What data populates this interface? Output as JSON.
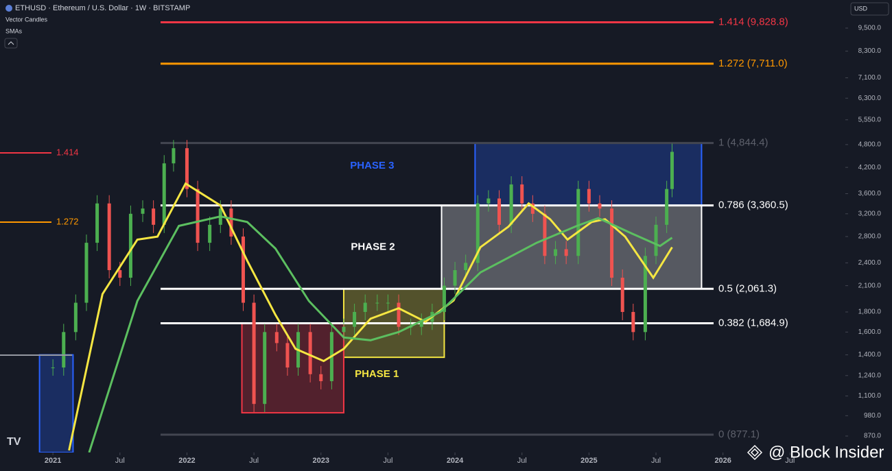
{
  "header": {
    "title": "ETHUSD · Ethereum / U.S. Dollar · 1W · BITSTAMP",
    "indicators": [
      "Vector Candles",
      "SMAs"
    ],
    "currency": "USD"
  },
  "watermark": "@ Block Insider",
  "left_markers": [
    {
      "label": "1.414",
      "color": "#f23645"
    },
    {
      "label": "1.272",
      "color": "#ff9800"
    }
  ],
  "chart_data": {
    "type": "candlestick",
    "ylog": true,
    "ylim": [
      790,
      11200
    ],
    "xlim": [
      2020.605,
      2026.913
    ],
    "yticks": [
      {
        "value": 9500,
        "label": "9,500.0"
      },
      {
        "value": 8300,
        "label": "8,300.0"
      },
      {
        "value": 7100,
        "label": "7,100.0"
      },
      {
        "value": 6300,
        "label": "6,300.0"
      },
      {
        "value": 5550,
        "label": "5,550.0"
      },
      {
        "value": 4800,
        "label": "4,800.0"
      },
      {
        "value": 4200,
        "label": "4,200.0"
      },
      {
        "value": 3600,
        "label": "3,600.0"
      },
      {
        "value": 3200,
        "label": "3,200.0"
      },
      {
        "value": 2800,
        "label": "2,800.0"
      },
      {
        "value": 2400,
        "label": "2,400.0"
      },
      {
        "value": 2100,
        "label": "2,100.0"
      },
      {
        "value": 1800,
        "label": "1,800.0"
      },
      {
        "value": 1600,
        "label": "1,600.0"
      },
      {
        "value": 1400,
        "label": "1,400.0"
      },
      {
        "value": 1240,
        "label": "1,240.0"
      },
      {
        "value": 1100,
        "label": "1,100.0"
      },
      {
        "value": 980,
        "label": "980.0"
      },
      {
        "value": 870,
        "label": "870.0"
      }
    ],
    "xticks": [
      2021,
      {
        "value": 2021.5,
        "label": "Jul"
      },
      2022,
      {
        "value": 2022.5,
        "label": "Jul"
      },
      2023,
      {
        "value": 2023.5,
        "label": "Jul"
      },
      2024,
      {
        "value": 2024.5,
        "label": "Jul"
      },
      2025,
      {
        "value": 2025.5,
        "label": "Jul"
      },
      2026,
      {
        "value": 2026.5,
        "label": "Jul"
      }
    ],
    "price": {
      "x": [
        2021.0,
        2021.08,
        2021.17,
        2021.25,
        2021.33,
        2021.42,
        2021.5,
        2021.58,
        2021.67,
        2021.75,
        2021.83,
        2021.9,
        2022.0,
        2022.08,
        2022.17,
        2022.25,
        2022.33,
        2022.42,
        2022.5,
        2022.58,
        2022.67,
        2022.75,
        2022.83,
        2022.92,
        2023.0,
        2023.08,
        2023.17,
        2023.25,
        2023.33,
        2023.42,
        2023.5,
        2023.58,
        2023.67,
        2023.75,
        2023.83,
        2023.92,
        2024.0,
        2024.08,
        2024.17,
        2024.25,
        2024.33,
        2024.42,
        2024.5,
        2024.58,
        2024.67,
        2024.75,
        2024.83,
        2024.92,
        2025.0,
        2025.08,
        2025.17,
        2025.25,
        2025.33,
        2025.42,
        2025.5,
        2025.58,
        2025.62
      ],
      "values": [
        1300,
        1600,
        1900,
        2700,
        3400,
        2300,
        2200,
        3200,
        3300,
        3000,
        4300,
        4700,
        3700,
        2700,
        3000,
        3300,
        2800,
        1900,
        1050,
        1600,
        1500,
        1300,
        1600,
        1250,
        1200,
        1600,
        1650,
        1800,
        1900,
        1900,
        1900,
        1650,
        1650,
        1700,
        1800,
        2100,
        2300,
        2400,
        3400,
        3500,
        3000,
        3800,
        3400,
        3200,
        2500,
        2600,
        2500,
        3700,
        3400,
        3300,
        2200,
        1800,
        1600,
        2500,
        3000,
        3700,
        4600
      ]
    },
    "series": [
      {
        "color": "#f5e642",
        "x": [
          2021.12,
          2021.37,
          2021.63,
          2021.78,
          2021.99,
          2022.25,
          2022.45,
          2022.66,
          2022.81,
          2023.02,
          2023.17,
          2023.37,
          2023.58,
          2023.78,
          2023.99,
          2024.19,
          2024.4,
          2024.55,
          2024.71,
          2024.84,
          2025.02,
          2025.12,
          2025.27,
          2025.48,
          2025.62
        ],
        "values": [
          800,
          2000,
          2750,
          2800,
          3820,
          3360,
          2430,
          1770,
          1450,
          1350,
          1450,
          1730,
          1840,
          1700,
          1925,
          2630,
          2970,
          3400,
          3100,
          2750,
          3050,
          3100,
          2800,
          2200,
          2630
        ]
      },
      {
        "color": "#5cbf60",
        "x": [
          2021.27,
          2021.63,
          2021.94,
          2022.25,
          2022.45,
          2022.66,
          2022.91,
          2023.17,
          2023.37,
          2023.58,
          2023.89,
          2024.19,
          2024.61,
          2024.91,
          2025.07,
          2025.32,
          2025.53,
          2025.62
        ],
        "values": [
          790,
          1920,
          2980,
          3150,
          3050,
          2610,
          1920,
          1550,
          1525,
          1600,
          1800,
          2270,
          2700,
          2980,
          3120,
          2850,
          2650,
          2780
        ]
      }
    ],
    "levels": [
      {
        "value": 9828.8,
        "label": "1.414 (9,828.8)",
        "color": "#f23645"
      },
      {
        "value": 7711.0,
        "label": "1.272 (7,711.0)",
        "color": "#ff9800"
      },
      {
        "value": 4844.4,
        "label": "1 (4,844.4)",
        "color": "#434651"
      },
      {
        "value": 3360.5,
        "label": "0.786 (3,360.5)",
        "color": "#ffffff"
      },
      {
        "value": 2061.3,
        "label": "0.5 (2,061.3)",
        "color": "#ffffff"
      },
      {
        "value": 1684.9,
        "label": "0.382 (1,684.9)",
        "color": "#ffffff"
      },
      {
        "value": 877.1,
        "label": "0 (877.1)",
        "color": "#434651"
      }
    ],
    "zones": [
      {
        "label": "PHASE 1",
        "color": "#f5e642",
        "x": [
          2023.17,
          2023.92
        ],
        "y": [
          1380,
          2061.3
        ]
      },
      {
        "label": "PHASE 2",
        "color": "#ffffff",
        "x": [
          2023.9,
          2025.84
        ],
        "y": [
          2061.3,
          3360.5
        ]
      },
      {
        "label": "PHASE 3",
        "color": "#2962ff",
        "x": [
          2024.15,
          2025.84
        ],
        "y": [
          3360.5,
          4844.4
        ]
      },
      {
        "color": "#f23645",
        "x": [
          2022.41,
          2023.17
        ],
        "y": [
          997,
          1684.9
        ]
      },
      {
        "color": "#2962ff",
        "x": [
          2020.9,
          2021.15
        ],
        "y": [
          790,
          1400
        ]
      }
    ]
  }
}
